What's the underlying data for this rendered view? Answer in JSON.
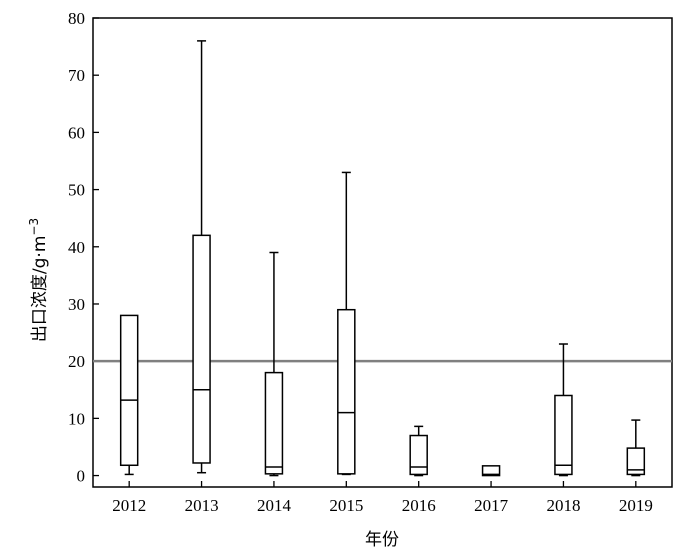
{
  "chart_data": {
    "type": "boxplot",
    "xlabel": "年份",
    "ylabel": "出口浓度/g·m",
    "ylabel_superscript": "−3",
    "categories": [
      "2012",
      "2013",
      "2014",
      "2015",
      "2016",
      "2017",
      "2018",
      "2019"
    ],
    "boxes": [
      {
        "min": 0.2,
        "q1": 1.8,
        "median": 13.2,
        "q3": 28.0,
        "max": 28.0
      },
      {
        "min": 0.5,
        "q1": 2.2,
        "median": 15.0,
        "q3": 42.0,
        "max": 76.0
      },
      {
        "min": 0.0,
        "q1": 0.3,
        "median": 1.5,
        "q3": 18.0,
        "max": 39.0
      },
      {
        "min": 0.2,
        "q1": 0.3,
        "median": 11.0,
        "q3": 29.0,
        "max": 53.0
      },
      {
        "min": 0.0,
        "q1": 0.2,
        "median": 1.5,
        "q3": 7.0,
        "max": 8.6
      },
      {
        "min": 0.0,
        "q1": 0.0,
        "median": 0.2,
        "q3": 1.7,
        "max": 1.7
      },
      {
        "min": 0.0,
        "q1": 0.2,
        "median": 1.8,
        "q3": 14.0,
        "max": 23.0
      },
      {
        "min": 0.0,
        "q1": 0.2,
        "median": 1.0,
        "q3": 4.8,
        "max": 9.7
      }
    ],
    "reference_line": {
      "value": 20,
      "color": "#808080"
    },
    "yticks": [
      0,
      10,
      20,
      30,
      40,
      50,
      60,
      70,
      80
    ],
    "ylim": [
      -2,
      80
    ],
    "grid": false
  }
}
